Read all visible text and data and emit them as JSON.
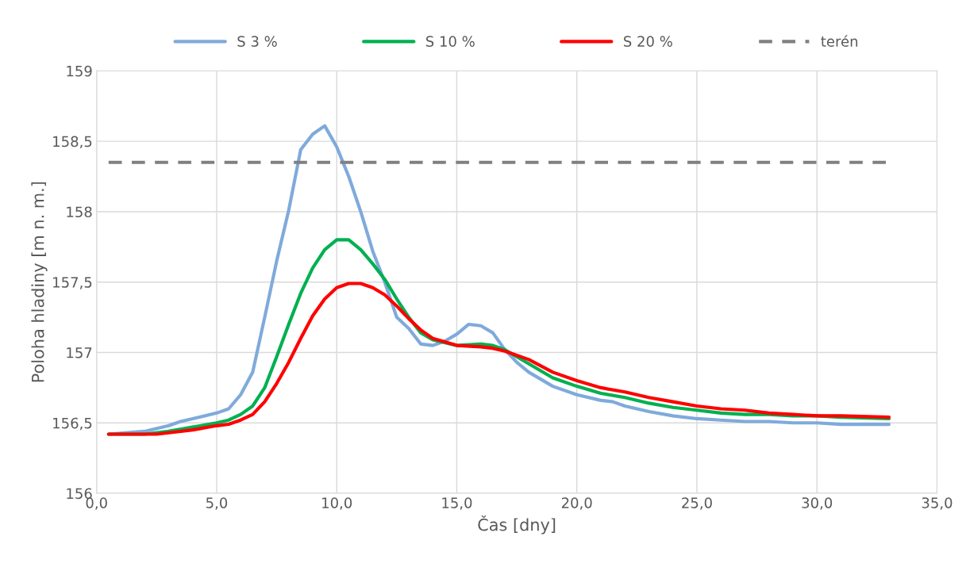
{
  "chart_data": {
    "type": "line",
    "xlabel": "Čas [dny]",
    "ylabel": "Poloha hladiny [m n. m.]",
    "xlim": [
      0,
      35
    ],
    "ylim": [
      156,
      159
    ],
    "xticks": [
      {
        "value": 0,
        "label": "0,0"
      },
      {
        "value": 5,
        "label": "5,0"
      },
      {
        "value": 10,
        "label": "10,0"
      },
      {
        "value": 15,
        "label": "15,0"
      },
      {
        "value": 20,
        "label": "20,0"
      },
      {
        "value": 25,
        "label": "25,0"
      },
      {
        "value": 30,
        "label": "30,0"
      },
      {
        "value": 35,
        "label": "35,0"
      }
    ],
    "yticks": [
      156,
      {
        "value": 156.5,
        "label": "156,5"
      },
      157,
      {
        "value": 157.5,
        "label": "157,5"
      },
      158,
      {
        "value": 158.5,
        "label": "158,5"
      },
      159
    ],
    "grid": true,
    "legend": "top",
    "marker": "none",
    "series": [
      {
        "name": "S 3 %",
        "color": "#7faadb",
        "line_style": "solid",
        "x": [
          0.5,
          2,
          3,
          3.5,
          4,
          5,
          5.5,
          6,
          6.5,
          7,
          7.5,
          8,
          8.5,
          9,
          9.5,
          10,
          10.5,
          11,
          11.5,
          12,
          12.5,
          13,
          13.5,
          14,
          14.5,
          15,
          15.5,
          16,
          16.5,
          17,
          17.5,
          18,
          19,
          20,
          21,
          21.5,
          22,
          23,
          24,
          25,
          26,
          27,
          28,
          29,
          30,
          31,
          33
        ],
        "values": [
          156.42,
          156.44,
          156.48,
          156.51,
          156.53,
          156.57,
          156.6,
          156.7,
          156.86,
          157.25,
          157.65,
          158.01,
          158.44,
          158.55,
          158.61,
          158.46,
          158.25,
          158.0,
          157.72,
          157.5,
          157.25,
          157.17,
          157.06,
          157.05,
          157.08,
          157.13,
          157.2,
          157.19,
          157.14,
          157.02,
          156.93,
          156.86,
          156.76,
          156.7,
          156.66,
          156.65,
          156.62,
          156.58,
          156.55,
          156.53,
          156.52,
          156.51,
          156.51,
          156.5,
          156.5,
          156.49,
          156.49
        ]
      },
      {
        "name": "S 10 %",
        "color": "#00b050",
        "line_style": "solid",
        "x": [
          0.5,
          2,
          3,
          4,
          5,
          5.5,
          6,
          6.5,
          7,
          7.5,
          8,
          8.5,
          9,
          9.5,
          10,
          10.5,
          11,
          11.5,
          12,
          12.5,
          13,
          13.5,
          14,
          15,
          16,
          16.5,
          17,
          18,
          19,
          20,
          21,
          22,
          23,
          24,
          25,
          26,
          27,
          28,
          29,
          30,
          31,
          33
        ],
        "values": [
          156.42,
          156.42,
          156.44,
          156.47,
          156.5,
          156.52,
          156.56,
          156.62,
          156.75,
          156.97,
          157.2,
          157.42,
          157.6,
          157.73,
          157.8,
          157.8,
          157.73,
          157.63,
          157.52,
          157.38,
          157.25,
          157.14,
          157.09,
          157.05,
          157.06,
          157.05,
          157.02,
          156.92,
          156.82,
          156.76,
          156.71,
          156.68,
          156.64,
          156.61,
          156.59,
          156.57,
          156.56,
          156.56,
          156.55,
          156.55,
          156.54,
          156.53
        ]
      },
      {
        "name": "S 20 %",
        "color": "#ff0000",
        "line_style": "solid",
        "x": [
          0.5,
          2.5,
          3,
          4,
          5,
          5.5,
          6,
          6.5,
          7,
          7.5,
          8,
          8.5,
          9,
          9.5,
          10,
          10.5,
          11,
          11.5,
          12,
          12.5,
          13,
          13.5,
          14,
          15,
          16,
          16.5,
          17,
          18,
          19,
          20,
          21,
          22,
          23,
          24,
          25,
          26,
          27,
          28,
          29,
          30,
          31,
          33
        ],
        "values": [
          156.42,
          156.42,
          156.43,
          156.45,
          156.48,
          156.49,
          156.52,
          156.56,
          156.65,
          156.78,
          156.93,
          157.1,
          157.26,
          157.38,
          157.46,
          157.49,
          157.49,
          157.46,
          157.41,
          157.33,
          157.24,
          157.16,
          157.1,
          157.05,
          157.04,
          157.03,
          157.01,
          156.95,
          156.86,
          156.8,
          156.75,
          156.72,
          156.68,
          156.65,
          156.62,
          156.6,
          156.59,
          156.57,
          156.56,
          156.55,
          156.55,
          156.54
        ]
      },
      {
        "name": "terén",
        "color": "#808080",
        "line_style": "dashed",
        "x": [
          0.5,
          33
        ],
        "values": [
          158.35,
          158.35
        ]
      }
    ]
  }
}
